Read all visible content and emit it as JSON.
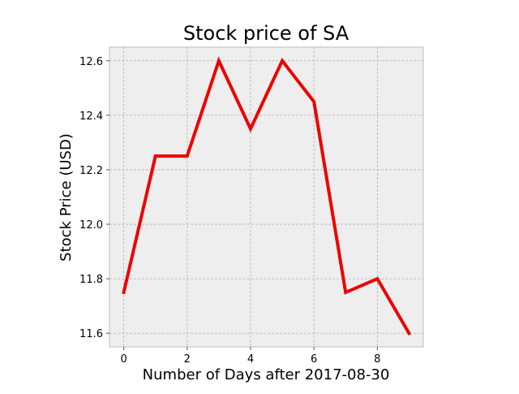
{
  "chart_data": {
    "type": "line",
    "title": "Stock price of SA",
    "xlabel": "Number of Days after 2017-08-30",
    "ylabel": "Stock Price (USD)",
    "x": [
      0,
      1,
      2,
      3,
      4,
      5,
      6,
      7,
      8,
      9
    ],
    "series": [
      {
        "values": [
          11.75,
          12.25,
          12.25,
          12.6,
          12.35,
          12.6,
          12.45,
          11.75,
          11.8,
          11.6
        ],
        "color": "#ee0000"
      }
    ],
    "xlim": [
      -0.45,
      9.45
    ],
    "ylim": [
      11.55,
      12.65
    ],
    "xticks": [
      0,
      2,
      4,
      6,
      8
    ],
    "xtick_labels": [
      "0",
      "2",
      "4",
      "6",
      "8"
    ],
    "yticks": [
      11.6,
      11.8,
      12.0,
      12.2,
      12.4,
      12.6
    ],
    "ytick_labels": [
      "11.6",
      "11.8",
      "12.0",
      "12.2",
      "12.4",
      "12.6"
    ],
    "grid": true,
    "plot_background": "#eeeeee",
    "grid_color": "#b0b0b0",
    "spine_color": "#bcbcbc"
  }
}
